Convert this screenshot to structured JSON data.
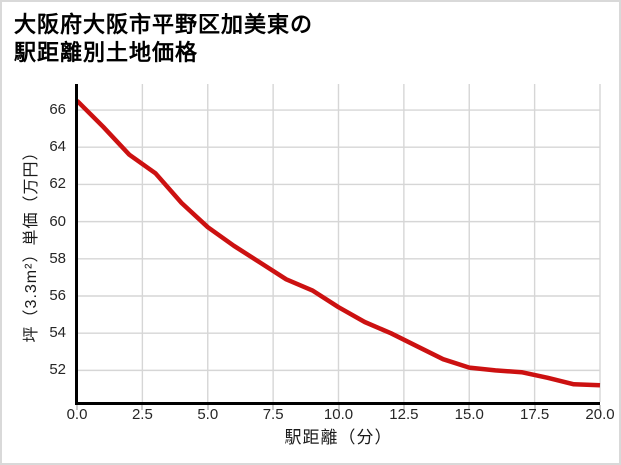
{
  "title_line1": "大阪府大阪市平野区加美東の",
  "title_line2": "駅距離別土地価格",
  "colors": {
    "background": "#ffffff",
    "card_border": "#d9d9d9",
    "spine": "#000000",
    "grid": "#d6d6d6",
    "line": "#cc1111",
    "tick_text": "#262626",
    "title_text": "#000000"
  },
  "chart_data": {
    "type": "line",
    "title": "大阪府大阪市平野区加美東の駅距離別土地価格",
    "xlabel": "駅距離（分）",
    "ylabel": "坪（3.3m²）単価（万円）",
    "x": [
      0,
      1,
      2,
      3,
      4,
      5,
      6,
      7,
      8,
      9,
      10,
      11,
      12,
      13,
      14,
      15,
      16,
      17,
      18,
      19,
      20
    ],
    "values": [
      66.5,
      65.1,
      63.6,
      62.6,
      61.0,
      59.7,
      58.7,
      57.8,
      56.9,
      56.3,
      55.4,
      54.6,
      54.0,
      53.3,
      52.6,
      52.15,
      52.0,
      51.9,
      51.6,
      51.25,
      51.2
    ],
    "series_name": "坪単価（万円）",
    "x_ticks": [
      0,
      2.5,
      5,
      7.5,
      10,
      12.5,
      15,
      17.5,
      20
    ],
    "x_tick_labels": [
      "0.0",
      "2.5",
      "5.0",
      "7.5",
      "10.0",
      "12.5",
      "15.0",
      "17.5",
      "20.0"
    ],
    "y_ticks": [
      52,
      54,
      56,
      58,
      60,
      62,
      64,
      66
    ],
    "y_tick_labels": [
      "52",
      "54",
      "56",
      "58",
      "60",
      "62",
      "64",
      "66"
    ],
    "xlim": [
      0,
      20
    ],
    "ylim": [
      50.3,
      67.4
    ],
    "grid": true,
    "legend": false,
    "line_color": "#cc1111",
    "line_width": 4.5
  }
}
